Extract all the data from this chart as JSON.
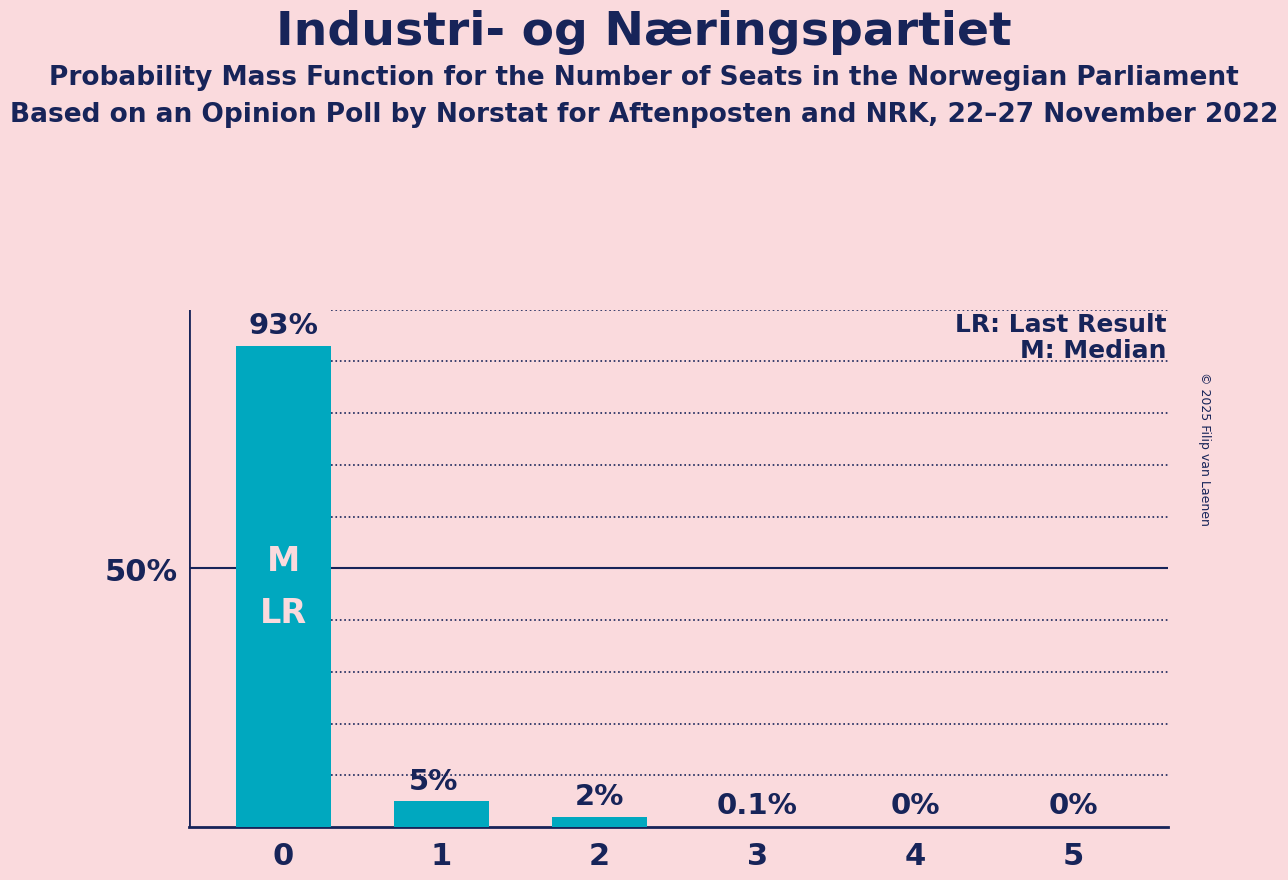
{
  "title": "Industri- og Næringspartiet",
  "subtitle1": "Probability Mass Function for the Number of Seats in the Norwegian Parliament",
  "subtitle2": "Based on an Opinion Poll by Norstat for Aftenposten and NRK, 22–27 November 2022",
  "copyright": "© 2025 Filip van Laenen",
  "categories": [
    0,
    1,
    2,
    3,
    4,
    5
  ],
  "values": [
    0.93,
    0.05,
    0.02,
    0.001,
    0.0,
    0.0
  ],
  "bar_labels": [
    "93%",
    "5%",
    "2%",
    "0.1%",
    "0%",
    "0%"
  ],
  "bar_color": "#00A8BF",
  "background_color": "#FADADD",
  "text_color": "#172459",
  "median_seat": 0,
  "last_result_seat": 0,
  "ylim_max": 1.0,
  "yticks": [
    0.0,
    0.1,
    0.2,
    0.3,
    0.4,
    0.5,
    0.6,
    0.7,
    0.8,
    0.9,
    1.0
  ],
  "ylabel_50": "50%",
  "legend_lr": "LR: Last Result",
  "legend_m": "M: Median",
  "title_fontsize": 34,
  "subtitle1_fontsize": 19,
  "subtitle2_fontsize": 19,
  "bar_label_fontsize": 21,
  "inside_label_fontsize": 24,
  "tick_fontsize": 22,
  "legend_fontsize": 18,
  "bar_width": 0.6,
  "dotted_line_color": "#172459",
  "solid_line_color": "#172459",
  "copyright_fontsize": 9
}
